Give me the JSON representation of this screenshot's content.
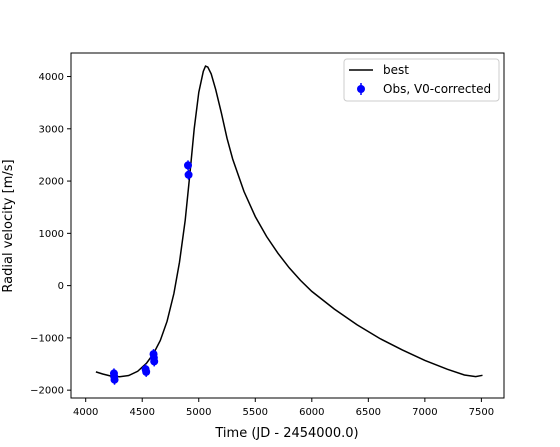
{
  "chart_data": {
    "type": "line",
    "xlabel": "Time (JD - 2454000.0)",
    "ylabel": "Radial velocity [m/s]",
    "xlim": [
      3870,
      7700
    ],
    "ylim": [
      -2150,
      4450
    ],
    "xticks": [
      4000,
      4500,
      5000,
      5500,
      6000,
      6500,
      7000,
      7500
    ],
    "yticks": [
      -2000,
      -1000,
      0,
      1000,
      2000,
      3000,
      4000
    ],
    "ytick_labels": [
      "−2000",
      "−1000",
      "0",
      "1000",
      "2000",
      "3000",
      "4000"
    ],
    "grid": false,
    "legend_position": "top-right",
    "colors": {
      "model": "#000000",
      "obs": "#0000ff"
    },
    "series": [
      {
        "name": "best",
        "kind": "line",
        "x": [
          4090,
          4150,
          4220,
          4300,
          4380,
          4460,
          4540,
          4600,
          4660,
          4720,
          4780,
          4830,
          4880,
          4920,
          4960,
          5000,
          5040,
          5060,
          5080,
          5110,
          5150,
          5200,
          5250,
          5300,
          5400,
          5500,
          5600,
          5700,
          5800,
          5900,
          6000,
          6200,
          6400,
          6600,
          6800,
          7000,
          7200,
          7350,
          7450,
          7510
        ],
        "y": [
          -1650,
          -1690,
          -1730,
          -1745,
          -1720,
          -1640,
          -1480,
          -1300,
          -1050,
          -680,
          -150,
          450,
          1250,
          2100,
          3000,
          3700,
          4100,
          4200,
          4180,
          4050,
          3750,
          3300,
          2820,
          2420,
          1800,
          1320,
          940,
          620,
          340,
          100,
          -110,
          -450,
          -750,
          -1010,
          -1230,
          -1430,
          -1600,
          -1710,
          -1740,
          -1715
        ]
      },
      {
        "name": "Obs, V0-corrected",
        "kind": "errorbar",
        "x": [
          4250,
          4252,
          4255,
          4530,
          4535,
          4600,
          4603,
          4606,
          4905,
          4910
        ],
        "y": [
          -1680,
          -1740,
          -1800,
          -1600,
          -1650,
          -1310,
          -1380,
          -1450,
          2300,
          2120
        ]
      }
    ]
  }
}
